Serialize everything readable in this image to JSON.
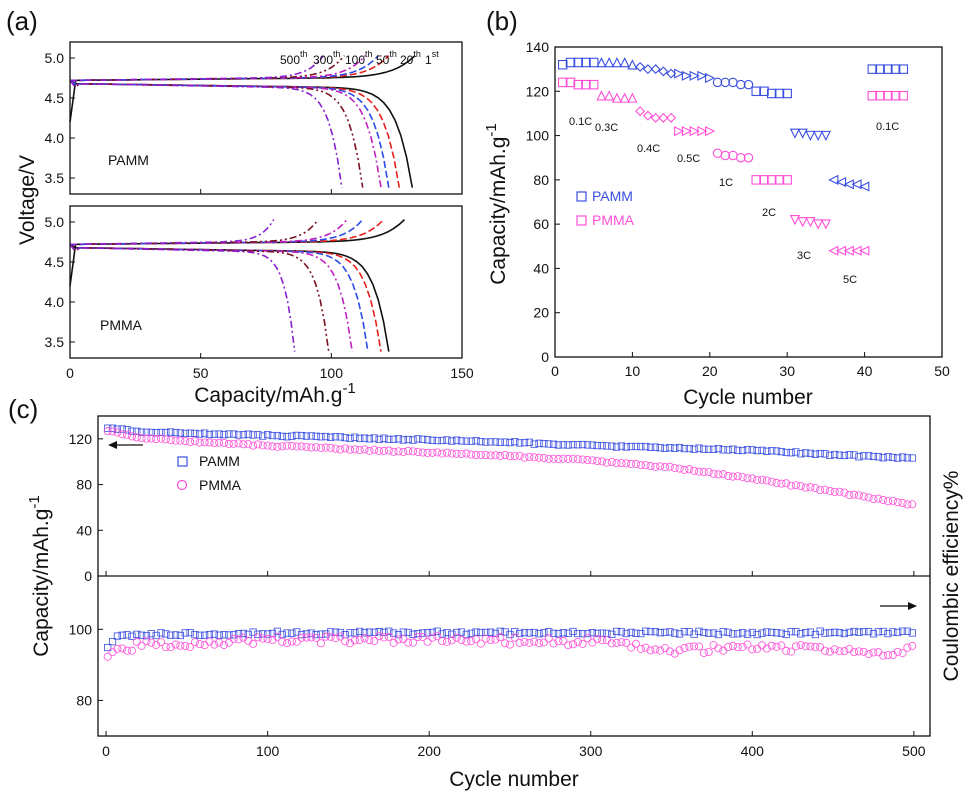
{
  "colors": {
    "pamm": "#3a4fe0",
    "pmma": "#ff4fd8",
    "black": "#111111",
    "red": "#e8201c",
    "blue": "#2a4be8",
    "purple": "#8a1fd0",
    "violet": "#c020c0",
    "maroon": "#7a1020"
  },
  "chart_data": [
    {
      "panel": "(a)",
      "type": "line",
      "ylabel": "Voltage/V",
      "xlabel_main": "Capacity/mAh.g",
      "xlabel_exp": "-1",
      "xlim": [
        0,
        150
      ],
      "x_ticks": [
        "0",
        "50",
        "100",
        "150"
      ],
      "subplots": [
        {
          "label": "PAMM",
          "ylim": [
            3.3,
            5.2
          ],
          "y_ticks": [
            "3.5",
            "4.0",
            "4.5",
            "5.0"
          ],
          "cycle_labels": [
            {
              "base": "500",
              "sup": "th"
            },
            {
              "base": "300",
              "sup": "th"
            },
            {
              "base": "100",
              "sup": "th"
            },
            {
              "base": "50",
              "sup": "th"
            },
            {
              "base": "20",
              "sup": "th"
            },
            {
              "base": "1",
              "sup": "st"
            }
          ],
          "series": [
            {
              "cycle": "1st",
              "discharge_end": 131,
              "charge_end": 132,
              "color": "black"
            },
            {
              "cycle": "20th",
              "discharge_end": 126,
              "charge_end": 122,
              "color": "red"
            },
            {
              "cycle": "50th",
              "discharge_end": 122,
              "charge_end": 118,
              "color": "blue"
            },
            {
              "cycle": "100th",
              "discharge_end": 119,
              "charge_end": 113,
              "color": "violet"
            },
            {
              "cycle": "300th",
              "discharge_end": 112,
              "charge_end": 105,
              "color": "maroon"
            },
            {
              "cycle": "500th",
              "discharge_end": 104,
              "charge_end": 97,
              "color": "purple"
            }
          ]
        },
        {
          "label": "PMMA",
          "ylim": [
            3.3,
            5.2
          ],
          "y_ticks": [
            "3.5",
            "4.0",
            "4.5",
            "5.0"
          ],
          "series": [
            {
              "cycle": "1st",
              "discharge_end": 122,
              "charge_end": 128,
              "color": "black"
            },
            {
              "cycle": "20th",
              "discharge_end": 119,
              "charge_end": 120,
              "color": "red"
            },
            {
              "cycle": "50th",
              "discharge_end": 114,
              "charge_end": 112,
              "color": "blue"
            },
            {
              "cycle": "100th",
              "discharge_end": 108,
              "charge_end": 106,
              "color": "violet"
            },
            {
              "cycle": "300th",
              "discharge_end": 99,
              "charge_end": 95,
              "color": "maroon"
            },
            {
              "cycle": "500th",
              "discharge_end": 86,
              "charge_end": 78,
              "color": "purple"
            }
          ]
        }
      ]
    },
    {
      "panel": "(b)",
      "type": "scatter",
      "xlabel": "Cycle number",
      "ylabel_main": "Capacity/mAh.g",
      "ylabel_exp": "-1",
      "xlim": [
        0,
        50
      ],
      "ylim": [
        0,
        140
      ],
      "x_ticks": [
        "0",
        "10",
        "20",
        "30",
        "40",
        "50"
      ],
      "y_ticks": [
        "0",
        "20",
        "40",
        "60",
        "80",
        "100",
        "120",
        "140"
      ],
      "legend": [
        "PAMM",
        "PMMA"
      ],
      "rate_labels": [
        "0.1C",
        "0.3C",
        "0.4C",
        "0.5C",
        "1C",
        "2C",
        "3C",
        "5C",
        "0.1C"
      ],
      "series": [
        {
          "name": "PAMM",
          "x": [
            1,
            2,
            3,
            4,
            5,
            6,
            7,
            8,
            9,
            10,
            11,
            12,
            13,
            14,
            15,
            16,
            17,
            18,
            19,
            20,
            21,
            22,
            23,
            24,
            25,
            26,
            27,
            28,
            29,
            30,
            31,
            32,
            33,
            34,
            35,
            36,
            37,
            38,
            39,
            40,
            41,
            42,
            43,
            44,
            45
          ],
          "y": [
            132,
            133,
            133,
            133,
            133,
            133,
            133,
            133,
            133,
            132,
            131,
            130,
            130,
            129,
            128,
            128,
            127,
            127,
            127,
            126,
            124,
            124,
            124,
            123,
            123,
            120,
            120,
            119,
            119,
            119,
            101,
            101,
            100,
            100,
            100,
            80,
            79,
            78,
            78,
            77,
            130,
            130,
            130,
            130,
            130
          ]
        },
        {
          "name": "PMMA",
          "x": [
            1,
            2,
            3,
            4,
            5,
            6,
            7,
            8,
            9,
            10,
            11,
            12,
            13,
            14,
            15,
            16,
            17,
            18,
            19,
            20,
            21,
            22,
            23,
            24,
            25,
            26,
            27,
            28,
            29,
            30,
            31,
            32,
            33,
            34,
            35,
            36,
            37,
            38,
            39,
            40,
            41,
            42,
            43,
            44,
            45
          ],
          "y": [
            124,
            124,
            123,
            123,
            123,
            118,
            118,
            117,
            117,
            117,
            111,
            109,
            108,
            108,
            108,
            102,
            102,
            102,
            102,
            102,
            92,
            91,
            91,
            90,
            90,
            80,
            80,
            80,
            80,
            80,
            62,
            61,
            61,
            60,
            60,
            48,
            48,
            48,
            48,
            48,
            118,
            118,
            118,
            118,
            118
          ]
        }
      ]
    },
    {
      "panel": "(c)",
      "type": "scatter",
      "xlabel": "Cycle number",
      "ylabel_main": "Capacity/mAh.g",
      "ylabel_exp": "-1",
      "y2label": "Coulombic efficiency%",
      "xlim": [
        -5,
        510
      ],
      "x_ticks": [
        "0",
        "100",
        "200",
        "300",
        "400",
        "500"
      ],
      "legend": [
        "PAMM",
        "PMMA"
      ],
      "top": {
        "ylim": [
          0,
          140
        ],
        "y_ticks": [
          "0",
          "40",
          "80",
          "120"
        ],
        "series": [
          {
            "name": "PAMM",
            "x": [
              1,
              20,
              50,
              100,
              150,
              200,
              250,
              300,
              350,
              400,
              450,
              500
            ],
            "y": [
              130,
              126,
              125,
              123,
              121,
              119,
              117,
              114,
              112,
              110,
              106,
              103
            ]
          },
          {
            "name": "PMMA",
            "x": [
              1,
              20,
              50,
              100,
              150,
              200,
              250,
              300,
              330,
              350,
              400,
              450,
              500
            ],
            "y": [
              127,
              121,
              118,
              114,
              111,
              108,
              105,
              101,
              97,
              95,
              85,
              74,
              62
            ]
          }
        ]
      },
      "bottom": {
        "ylim": [
          70,
          115
        ],
        "y_ticks": [
          "80",
          "100"
        ],
        "series": [
          {
            "name": "PAMM",
            "x": [
              1,
              5,
              20,
              100,
              200,
              300,
              400,
              500
            ],
            "y": [
              95,
              97.5,
              98.5,
              99,
              99,
              99,
              99,
              99
            ]
          },
          {
            "name": "PMMA",
            "x": [
              1,
              5,
              20,
              100,
              200,
              300,
              350,
              400,
              450,
              480,
              500
            ],
            "y": [
              93,
              94,
              95.5,
              97,
              97,
              96.5,
              94,
              95,
              94.5,
              92.5,
              94.5
            ]
          }
        ]
      }
    }
  ]
}
